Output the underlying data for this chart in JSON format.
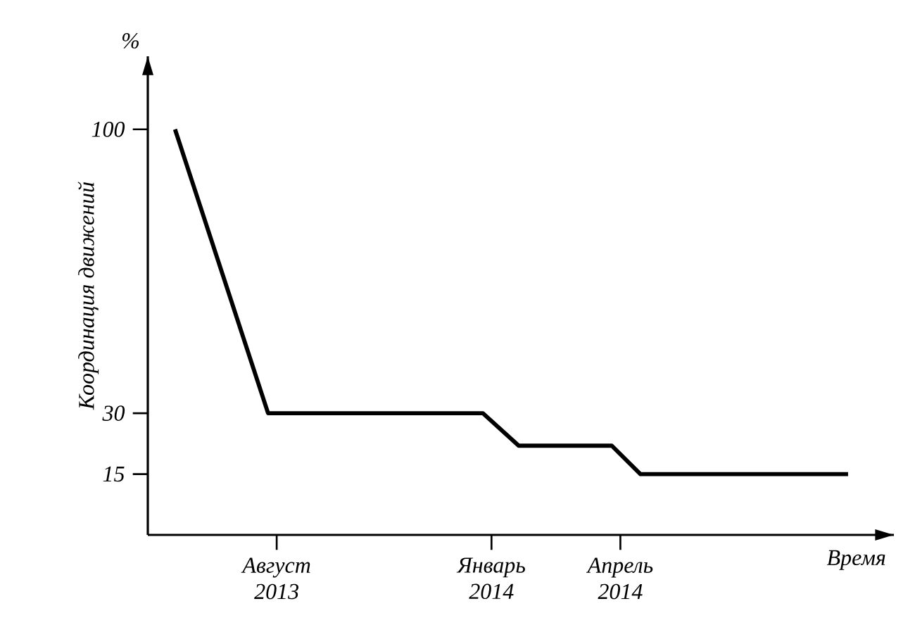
{
  "chart_data": {
    "type": "line",
    "xlabel": "Время",
    "ylabel": "Координация движений",
    "annotations": [
      "%"
    ],
    "x": [
      "2013-05-20",
      "2013-07-25",
      "2013-12-25",
      "2014-01-20",
      "2014-03-25",
      "2014-04-15",
      "2014-09-10"
    ],
    "values": [
      100,
      30,
      30,
      22,
      22,
      15,
      15
    ],
    "color": "#000000",
    "xlim": [
      "2013-05-01",
      "2014-10-12"
    ],
    "ylim": [
      0,
      118
    ],
    "xticks": [
      {
        "value": "2013-08",
        "label": "Август 2013"
      },
      {
        "value": "2014-01",
        "label": "Январь 2014"
      },
      {
        "value": "2014-04",
        "label": "Апрель 2014"
      }
    ],
    "yticks": [
      15,
      30,
      100
    ]
  }
}
